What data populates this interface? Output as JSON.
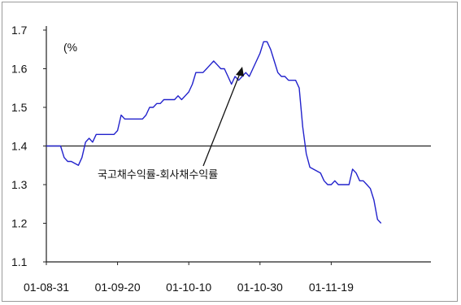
{
  "chart_data": {
    "type": "line",
    "unit_label": "(%",
    "annotation": "국고채수익률-회사채수익률",
    "ylim": [
      1.1,
      1.7
    ],
    "yticks": [
      "1.1",
      "1.2",
      "1.3",
      "1.4",
      "1.5",
      "1.6",
      "1.7"
    ],
    "x_start": "01-08-31",
    "x_end": "01-12-17",
    "xticks": [
      "01-08-31",
      "01-09-20",
      "01-10-10",
      "01-10-30",
      "01-11-19"
    ],
    "reference_line": 1.4,
    "grid": false,
    "series": [
      {
        "color": "#2222cc",
        "points": [
          [
            "01-08-31",
            1.4
          ],
          [
            "01-09-01",
            1.4
          ],
          [
            "01-09-02",
            1.4
          ],
          [
            "01-09-03",
            1.4
          ],
          [
            "01-09-04",
            1.4
          ],
          [
            "01-09-05",
            1.37
          ],
          [
            "01-09-06",
            1.36
          ],
          [
            "01-09-07",
            1.36
          ],
          [
            "01-09-08",
            1.355
          ],
          [
            "01-09-09",
            1.35
          ],
          [
            "01-09-10",
            1.37
          ],
          [
            "01-09-11",
            1.41
          ],
          [
            "01-09-12",
            1.42
          ],
          [
            "01-09-13",
            1.41
          ],
          [
            "01-09-14",
            1.43
          ],
          [
            "01-09-15",
            1.43
          ],
          [
            "01-09-16",
            1.43
          ],
          [
            "01-09-17",
            1.43
          ],
          [
            "01-09-18",
            1.43
          ],
          [
            "01-09-19",
            1.43
          ],
          [
            "01-09-20",
            1.44
          ],
          [
            "01-09-21",
            1.48
          ],
          [
            "01-09-22",
            1.47
          ],
          [
            "01-09-23",
            1.47
          ],
          [
            "01-09-24",
            1.47
          ],
          [
            "01-09-25",
            1.47
          ],
          [
            "01-09-26",
            1.47
          ],
          [
            "01-09-27",
            1.47
          ],
          [
            "01-09-28",
            1.48
          ],
          [
            "01-09-29",
            1.5
          ],
          [
            "01-09-30",
            1.5
          ],
          [
            "01-10-01",
            1.51
          ],
          [
            "01-10-02",
            1.51
          ],
          [
            "01-10-03",
            1.52
          ],
          [
            "01-10-04",
            1.52
          ],
          [
            "01-10-05",
            1.52
          ],
          [
            "01-10-06",
            1.52
          ],
          [
            "01-10-07",
            1.53
          ],
          [
            "01-10-08",
            1.52
          ],
          [
            "01-10-09",
            1.53
          ],
          [
            "01-10-10",
            1.54
          ],
          [
            "01-10-11",
            1.56
          ],
          [
            "01-10-12",
            1.59
          ],
          [
            "01-10-13",
            1.59
          ],
          [
            "01-10-14",
            1.59
          ],
          [
            "01-10-15",
            1.6
          ],
          [
            "01-10-16",
            1.61
          ],
          [
            "01-10-17",
            1.62
          ],
          [
            "01-10-18",
            1.61
          ],
          [
            "01-10-19",
            1.6
          ],
          [
            "01-10-20",
            1.6
          ],
          [
            "01-10-21",
            1.58
          ],
          [
            "01-10-22",
            1.56
          ],
          [
            "01-10-23",
            1.58
          ],
          [
            "01-10-24",
            1.57
          ],
          [
            "01-10-25",
            1.58
          ],
          [
            "01-10-26",
            1.59
          ],
          [
            "01-10-27",
            1.58
          ],
          [
            "01-10-28",
            1.6
          ],
          [
            "01-10-29",
            1.62
          ],
          [
            "01-10-30",
            1.64
          ],
          [
            "01-10-31",
            1.67
          ],
          [
            "01-11-01",
            1.67
          ],
          [
            "01-11-02",
            1.65
          ],
          [
            "01-11-03",
            1.62
          ],
          [
            "01-11-04",
            1.59
          ],
          [
            "01-11-05",
            1.58
          ],
          [
            "01-11-06",
            1.58
          ],
          [
            "01-11-07",
            1.57
          ],
          [
            "01-11-08",
            1.57
          ],
          [
            "01-11-09",
            1.57
          ],
          [
            "01-11-10",
            1.55
          ],
          [
            "01-11-11",
            1.45
          ],
          [
            "01-11-12",
            1.38
          ],
          [
            "01-11-13",
            1.345
          ],
          [
            "01-11-14",
            1.34
          ],
          [
            "01-11-15",
            1.335
          ],
          [
            "01-11-16",
            1.33
          ],
          [
            "01-11-17",
            1.31
          ],
          [
            "01-11-18",
            1.3
          ],
          [
            "01-11-19",
            1.3
          ],
          [
            "01-11-20",
            1.31
          ],
          [
            "01-11-21",
            1.3
          ],
          [
            "01-11-22",
            1.3
          ],
          [
            "01-11-23",
            1.3
          ],
          [
            "01-11-24",
            1.3
          ],
          [
            "01-11-25",
            1.34
          ],
          [
            "01-11-26",
            1.33
          ],
          [
            "01-11-27",
            1.31
          ],
          [
            "01-11-28",
            1.31
          ],
          [
            "01-11-29",
            1.3
          ],
          [
            "01-11-30",
            1.29
          ],
          [
            "01-12-01",
            1.26
          ],
          [
            "01-12-02",
            1.21
          ],
          [
            "01-12-03",
            1.2
          ]
        ]
      }
    ]
  }
}
